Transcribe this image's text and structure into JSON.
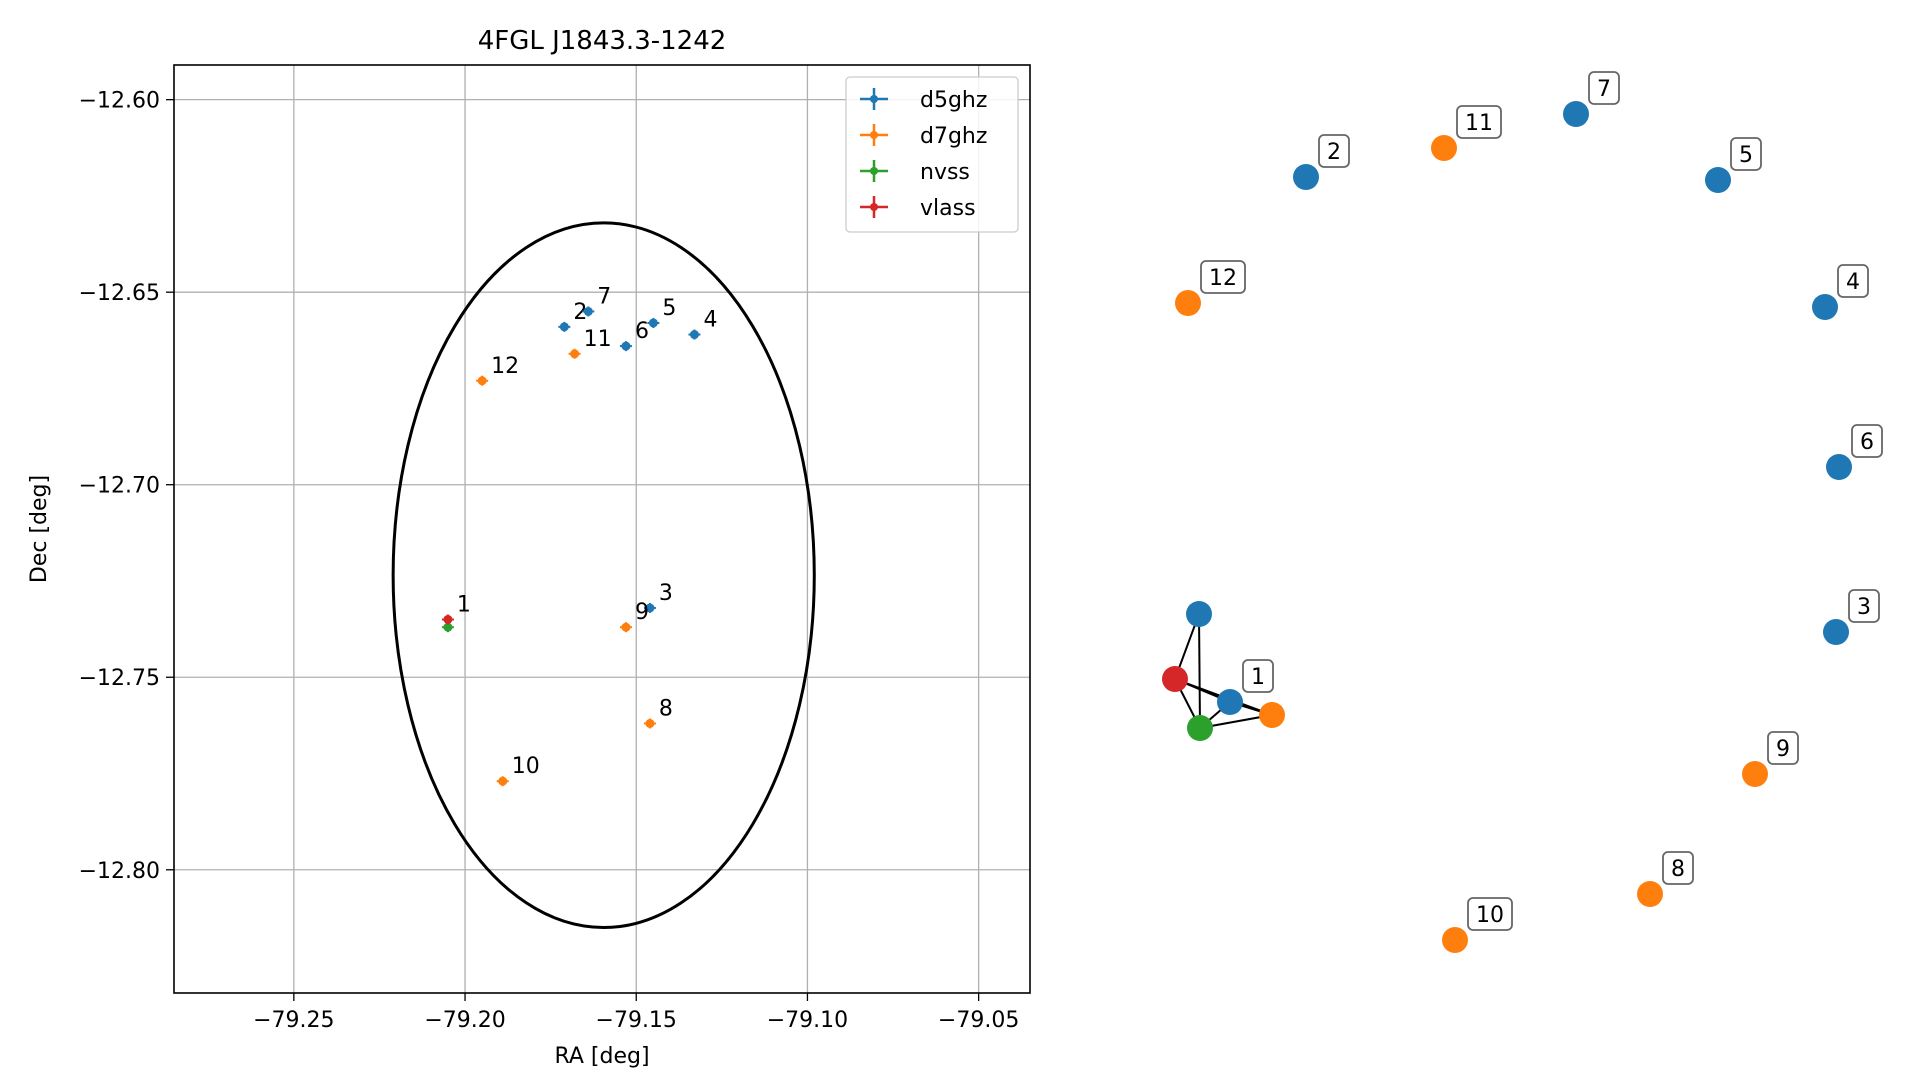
{
  "chart_data": [
    {
      "type": "scatter",
      "title": "4FGL J1843.3-1242",
      "xlabel": "RA [deg]",
      "ylabel": "Dec [deg]",
      "xlim": [
        -79.285,
        -79.035
      ],
      "ylim": [
        -12.832,
        -12.591
      ],
      "xticks": [
        {
          "value": -79.25,
          "label": "−79.25"
        },
        {
          "value": -79.2,
          "label": "−79.20"
        },
        {
          "value": -79.15,
          "label": "−79.15"
        },
        {
          "value": -79.1,
          "label": "−79.10"
        },
        {
          "value": -79.05,
          "label": "−79.05"
        }
      ],
      "yticks": [
        {
          "value": -12.6,
          "label": "−12.60"
        },
        {
          "value": -12.65,
          "label": "−12.65"
        },
        {
          "value": -12.7,
          "label": "−12.70"
        },
        {
          "value": -12.75,
          "label": "−12.75"
        },
        {
          "value": -12.8,
          "label": "−12.80"
        }
      ],
      "grid": true,
      "legend_position": "top-right",
      "ellipse": {
        "center": [
          -79.1595,
          -12.7235
        ],
        "ra_semi_axis": 0.0615,
        "dec_semi_axis": 0.0915,
        "color": "#000000"
      },
      "series": [
        {
          "name": "d5ghz",
          "color": "#1f77b4",
          "points": [
            {
              "label": "2",
              "x": -79.171,
              "y": -12.659
            },
            {
              "label": "7",
              "x": -79.164,
              "y": -12.655
            },
            {
              "label": "6",
              "x": -79.153,
              "y": -12.664
            },
            {
              "label": "5",
              "x": -79.145,
              "y": -12.658
            },
            {
              "label": "4",
              "x": -79.133,
              "y": -12.661
            },
            {
              "label": "3",
              "x": -79.146,
              "y": -12.732
            }
          ]
        },
        {
          "name": "d7ghz",
          "color": "#ff7f0e",
          "points": [
            {
              "label": "11",
              "x": -79.168,
              "y": -12.666
            },
            {
              "label": "12",
              "x": -79.195,
              "y": -12.673
            },
            {
              "label": "9",
              "x": -79.153,
              "y": -12.737
            },
            {
              "label": "8",
              "x": -79.146,
              "y": -12.762
            },
            {
              "label": "10",
              "x": -79.189,
              "y": -12.777
            }
          ]
        },
        {
          "name": "nvss",
          "color": "#2ca02c",
          "points": [
            {
              "label": "",
              "x": -79.205,
              "y": -12.737
            }
          ]
        },
        {
          "name": "vlass",
          "color": "#d62728",
          "points": [
            {
              "label": "1",
              "x": -79.205,
              "y": -12.735
            }
          ]
        }
      ]
    },
    {
      "type": "network",
      "nodes": [
        {
          "id": "7",
          "color": "#1f77b4",
          "label": "7"
        },
        {
          "id": "11",
          "color": "#ff7f0e",
          "label": "11"
        },
        {
          "id": "2",
          "color": "#1f77b4",
          "label": "2"
        },
        {
          "id": "5",
          "color": "#1f77b4",
          "label": "5"
        },
        {
          "id": "12",
          "color": "#ff7f0e",
          "label": "12"
        },
        {
          "id": "4",
          "color": "#1f77b4",
          "label": "4"
        },
        {
          "id": "6",
          "color": "#1f77b4",
          "label": "6"
        },
        {
          "id": "3",
          "color": "#1f77b4",
          "label": "3"
        },
        {
          "id": "9",
          "color": "#ff7f0e",
          "label": "9"
        },
        {
          "id": "8",
          "color": "#ff7f0e",
          "label": "8"
        },
        {
          "id": "10",
          "color": "#ff7f0e",
          "label": "10"
        },
        {
          "id": "1-d5ghz",
          "color": "#1f77b4",
          "label": "1"
        },
        {
          "id": "1-d5ghz-b",
          "color": "#1f77b4",
          "label": ""
        },
        {
          "id": "1-vlass",
          "color": "#d62728",
          "label": ""
        },
        {
          "id": "1-nvss",
          "color": "#2ca02c",
          "label": ""
        },
        {
          "id": "1-d7ghz",
          "color": "#ff7f0e",
          "label": ""
        }
      ],
      "edges": [
        [
          "1-d5ghz-b",
          "1-vlass"
        ],
        [
          "1-d5ghz-b",
          "1-nvss"
        ],
        [
          "1-vlass",
          "1-d5ghz"
        ],
        [
          "1-vlass",
          "1-nvss"
        ],
        [
          "1-vlass",
          "1-d7ghz"
        ],
        [
          "1-d5ghz",
          "1-nvss"
        ],
        [
          "1-d5ghz",
          "1-d7ghz"
        ],
        [
          "1-nvss",
          "1-d7ghz"
        ]
      ]
    }
  ]
}
